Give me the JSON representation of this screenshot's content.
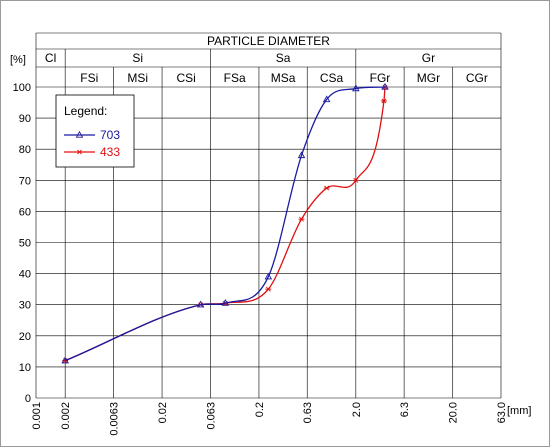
{
  "chart_data": {
    "type": "line",
    "title": "PARTICLE DIAMETER",
    "ylabel": "[%]",
    "xlabel": "[mm]",
    "x_scale": "log",
    "xlim": [
      0.001,
      63.0
    ],
    "ylim": [
      0,
      100
    ],
    "x_ticks": [
      "0.001",
      "0.002",
      "0.0063",
      "0.02",
      "0.063",
      "0.2",
      "0.63",
      "2.0",
      "6.3",
      "20.0",
      "63.0"
    ],
    "y_ticks": [
      "0",
      "10",
      "20",
      "30",
      "40",
      "50",
      "60",
      "70",
      "80",
      "90",
      "100"
    ],
    "groups": [
      {
        "label": "Cl",
        "from": 0.001,
        "to": 0.002
      },
      {
        "label": "Si",
        "from": 0.002,
        "to": 0.063
      },
      {
        "label": "Sa",
        "from": 0.063,
        "to": 2.0
      },
      {
        "label": "Gr",
        "from": 2.0,
        "to": 63.0
      }
    ],
    "subgroups": [
      {
        "label": "FSi",
        "from": 0.002,
        "to": 0.0063
      },
      {
        "label": "MSi",
        "from": 0.0063,
        "to": 0.02
      },
      {
        "label": "CSi",
        "from": 0.02,
        "to": 0.063
      },
      {
        "label": "FSa",
        "from": 0.063,
        "to": 0.2
      },
      {
        "label": "MSa",
        "from": 0.2,
        "to": 0.63
      },
      {
        "label": "CSa",
        "from": 0.63,
        "to": 2.0
      },
      {
        "label": "FGr",
        "from": 2.0,
        "to": 6.3
      },
      {
        "label": "MGr",
        "from": 6.3,
        "to": 20.0
      },
      {
        "label": "CGr",
        "from": 20.0,
        "to": 63.0
      }
    ],
    "legend_title": "Legend:",
    "legend_position": "top-left",
    "series": [
      {
        "name": "703",
        "color": "#1a1aa0",
        "marker": "triangle",
        "x": [
          0.002,
          0.05,
          0.09,
          0.25,
          0.55,
          1.0,
          2.0,
          4.0
        ],
        "y": [
          12,
          30,
          30.5,
          39,
          78,
          96,
          99.5,
          100
        ]
      },
      {
        "name": "433",
        "color": "#e01010",
        "marker": "asterisk",
        "x": [
          0.002,
          0.05,
          0.09,
          0.25,
          0.55,
          1.0,
          2.0,
          3.9,
          4.0
        ],
        "y": [
          12,
          30,
          30.5,
          35,
          57.5,
          67.5,
          70,
          95.5,
          100
        ]
      }
    ]
  }
}
